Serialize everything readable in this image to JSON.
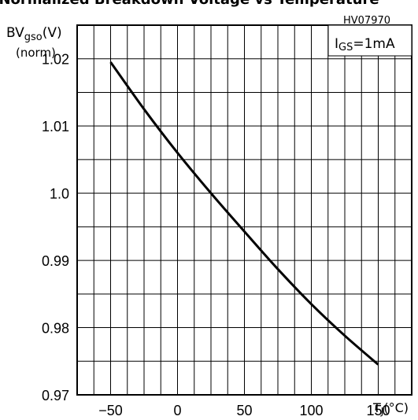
{
  "chart_data": {
    "type": "line",
    "title": "Normalized Breakdown Voltage vs Temperature",
    "figure_id": "HV07970",
    "ylabel_main": "BV",
    "ylabel_sub": "gso",
    "ylabel_unit": "(V)",
    "ylabel_norm": "(norm)",
    "xlabel_main": "T",
    "xlabel_sub": "J",
    "xlabel_unit": "(°C)",
    "annotation_main": "I",
    "annotation_sub": "GS",
    "annotation_value": "=1mA",
    "xlim": [
      -75,
      175
    ],
    "ylim": [
      0.97,
      1.025
    ],
    "x_ticks": [
      "-50",
      "0",
      "50",
      "100",
      "150"
    ],
    "y_ticks": [
      "0.97",
      "0.98",
      "0.99",
      "1.0",
      "1.01",
      "1.02"
    ],
    "grid": true,
    "series": [
      {
        "x": [
          -50,
          -25,
          0,
          25,
          50,
          75,
          100,
          125,
          150
        ],
        "y": [
          1.0195,
          1.0125,
          1.006,
          1.0,
          0.9943,
          0.9887,
          0.9835,
          0.9788,
          0.9745
        ]
      }
    ]
  }
}
